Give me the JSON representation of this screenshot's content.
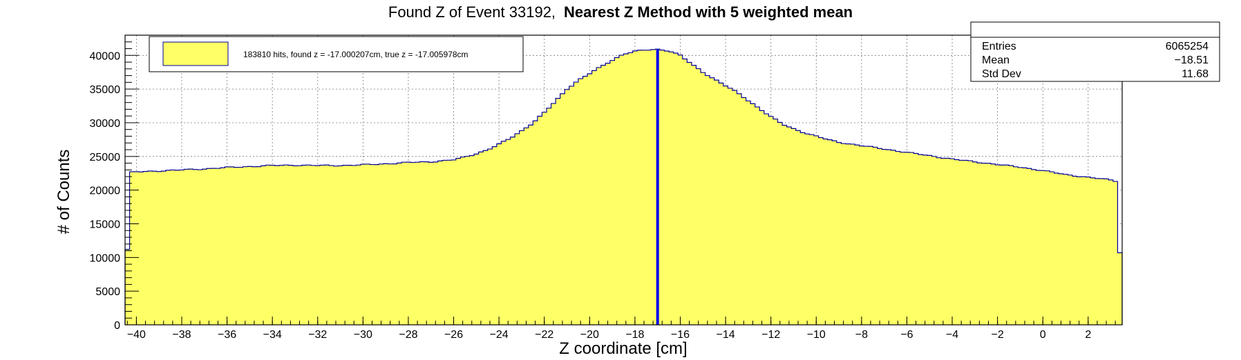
{
  "title": {
    "prefix": "Found Z of Event 33192,",
    "bold": "Nearest Z Method with 5 weighted mean"
  },
  "chart_data": {
    "type": "histogram",
    "xlabel": "Z coordinate [cm]",
    "ylabel": "# of Counts",
    "xlim": [
      -40.5,
      3.5
    ],
    "ylim": [
      0,
      43000
    ],
    "xticks": [
      -40,
      -38,
      -36,
      -34,
      -32,
      -30,
      -28,
      -26,
      -24,
      -22,
      -20,
      -18,
      -16,
      -14,
      -12,
      -10,
      -8,
      -6,
      -4,
      -2,
      0,
      2
    ],
    "xtick_labels": [
      "−40",
      "−38",
      "−36",
      "−34",
      "−32",
      "−30",
      "−28",
      "−26",
      "−24",
      "−22",
      "−20",
      "−18",
      "−16",
      "−14",
      "−12",
      "−10",
      "−8",
      "−6",
      "−4",
      "−2",
      "0",
      "2"
    ],
    "yticks": [
      0,
      5000,
      10000,
      15000,
      20000,
      25000,
      30000,
      35000,
      40000
    ],
    "ytick_labels": [
      "0",
      "5000",
      "10000",
      "15000",
      "20000",
      "25000",
      "30000",
      "35000",
      "40000"
    ],
    "grid": true,
    "bin_width": 0.2,
    "fill_color": "#ffff66",
    "line_color": "#000099",
    "profile": [
      [
        -40.3,
        22600
      ],
      [
        -40.0,
        22700
      ],
      [
        -39.0,
        22850
      ],
      [
        -38.0,
        23000
      ],
      [
        -37.0,
        23150
      ],
      [
        -36.0,
        23350
      ],
      [
        -35.0,
        23500
      ],
      [
        -34.0,
        23650
      ],
      [
        -33.0,
        23700
      ],
      [
        -32.0,
        23650
      ],
      [
        -31.0,
        23650
      ],
      [
        -30.0,
        23750
      ],
      [
        -29.0,
        23900
      ],
      [
        -28.0,
        24100
      ],
      [
        -27.0,
        24200
      ],
      [
        -26.0,
        24500
      ],
      [
        -25.5,
        24900
      ],
      [
        -25.0,
        25400
      ],
      [
        -24.5,
        26000
      ],
      [
        -24.0,
        26800
      ],
      [
        -23.5,
        27700
      ],
      [
        -23.0,
        28800
      ],
      [
        -22.5,
        30000
      ],
      [
        -22.0,
        31500
      ],
      [
        -21.5,
        33200
      ],
      [
        -21.0,
        35000
      ],
      [
        -20.5,
        36300
      ],
      [
        -20.0,
        37300
      ],
      [
        -19.5,
        38300
      ],
      [
        -19.0,
        39300
      ],
      [
        -18.5,
        40200
      ],
      [
        -18.0,
        40600
      ],
      [
        -17.5,
        40800
      ],
      [
        -17.0,
        40900
      ],
      [
        -16.5,
        40700
      ],
      [
        -16.0,
        40000
      ],
      [
        -15.5,
        38700
      ],
      [
        -15.0,
        37500
      ],
      [
        -14.5,
        36500
      ],
      [
        -14.0,
        35500
      ],
      [
        -13.5,
        34500
      ],
      [
        -13.0,
        33300
      ],
      [
        -12.5,
        32100
      ],
      [
        -12.0,
        30900
      ],
      [
        -11.5,
        29800
      ],
      [
        -11.0,
        29100
      ],
      [
        -10.5,
        28500
      ],
      [
        -10.0,
        28000
      ],
      [
        -9.5,
        27500
      ],
      [
        -9.0,
        27100
      ],
      [
        -8.0,
        26600
      ],
      [
        -7.0,
        26100
      ],
      [
        -6.0,
        25600
      ],
      [
        -5.0,
        25100
      ],
      [
        -4.0,
        24600
      ],
      [
        -3.0,
        24200
      ],
      [
        -2.0,
        23800
      ],
      [
        -1.0,
        23400
      ],
      [
        0.0,
        22900
      ],
      [
        1.0,
        22300
      ],
      [
        2.0,
        21900
      ],
      [
        3.0,
        21500
      ],
      [
        3.3,
        21300
      ]
    ],
    "edge_bins": [
      {
        "x_from": -40.5,
        "x_to": -40.3,
        "value": 11200
      },
      {
        "x_from": 3.3,
        "x_to": 3.5,
        "value": 10700
      }
    ],
    "marker_line": {
      "x": -17.0,
      "color": "#0000ee"
    }
  },
  "legend": {
    "swatch_color": "#ffff66",
    "label": "183810 hits, found z = -17.000207cm, true z = -17.005978cm"
  },
  "stats": {
    "rows": [
      {
        "label": "Entries",
        "value": "6065254"
      },
      {
        "label": "Mean",
        "value": "−18.51"
      },
      {
        "label": "Std Dev",
        "value": "11.68"
      }
    ]
  }
}
